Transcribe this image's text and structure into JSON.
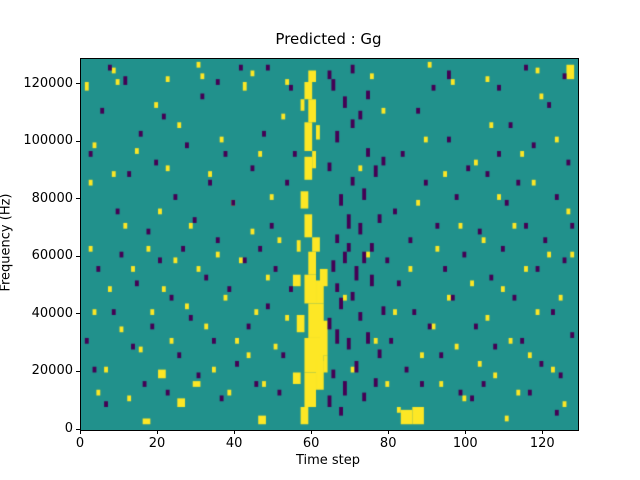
{
  "figure": {
    "background": "#ffffff"
  },
  "chart_data": {
    "type": "heatmap",
    "title": "Predicted : Gg",
    "xlabel": "Time step",
    "ylabel": "Frequency (Hz)",
    "xlim": [
      0,
      129
    ],
    "ylim": [
      0,
      129000
    ],
    "xticks": {
      "values": [
        0,
        20,
        40,
        60,
        80,
        100,
        120
      ],
      "labels": [
        "0",
        "20",
        "40",
        "60",
        "80",
        "100",
        "120"
      ]
    },
    "yticks": {
      "values": [
        0,
        20000,
        40000,
        60000,
        80000,
        100000,
        120000
      ],
      "labels": [
        "0",
        "20000",
        "40000",
        "60000",
        "80000",
        "100000",
        "120000"
      ]
    },
    "colors": {
      "background": "#21918c",
      "high": "#fde725",
      "low": "#440154"
    },
    "cell_size": {
      "x": 1,
      "y": 1000
    },
    "yellow_cells": [
      [
        2,
        62,
        1,
        2
      ],
      [
        2,
        85,
        1,
        2
      ],
      [
        3,
        40,
        1,
        2
      ],
      [
        1,
        118,
        1,
        3
      ],
      [
        4,
        12,
        1,
        2
      ],
      [
        3,
        98,
        1,
        2
      ],
      [
        6,
        20,
        1,
        2
      ],
      [
        7,
        48,
        1,
        2
      ],
      [
        8,
        88,
        1,
        2
      ],
      [
        9,
        120,
        1,
        2
      ],
      [
        10,
        34,
        1,
        2
      ],
      [
        11,
        70,
        1,
        2
      ],
      [
        12,
        10,
        1,
        2
      ],
      [
        13,
        55,
        1,
        2
      ],
      [
        14,
        96,
        1,
        2
      ],
      [
        15,
        27,
        1,
        2
      ],
      [
        17,
        62,
        1,
        2
      ],
      [
        18,
        40,
        1,
        2
      ],
      [
        19,
        112,
        1,
        2
      ],
      [
        20,
        18,
        2,
        3
      ],
      [
        20,
        75,
        1,
        2
      ],
      [
        21,
        48,
        1,
        2
      ],
      [
        22,
        90,
        1,
        2
      ],
      [
        23,
        30,
        1,
        2
      ],
      [
        24,
        58,
        1,
        2
      ],
      [
        25,
        105,
        1,
        2
      ],
      [
        25,
        8,
        2,
        3
      ],
      [
        27,
        42,
        1,
        2
      ],
      [
        28,
        70,
        1,
        2
      ],
      [
        29,
        15,
        2,
        2
      ],
      [
        30,
        55,
        1,
        2
      ],
      [
        31,
        122,
        1,
        2
      ],
      [
        32,
        35,
        1,
        2
      ],
      [
        33,
        88,
        1,
        2
      ],
      [
        34,
        20,
        1,
        2
      ],
      [
        35,
        60,
        1,
        2
      ],
      [
        36,
        100,
        1,
        2
      ],
      [
        37,
        45,
        1,
        2
      ],
      [
        38,
        12,
        1,
        2
      ],
      [
        39,
        78,
        1,
        2
      ],
      [
        40,
        30,
        1,
        2
      ],
      [
        41,
        58,
        1,
        2
      ],
      [
        42,
        118,
        1,
        3
      ],
      [
        43,
        25,
        1,
        2
      ],
      [
        44,
        68,
        1,
        2
      ],
      [
        45,
        40,
        1,
        2
      ],
      [
        46,
        95,
        1,
        2
      ],
      [
        47,
        15,
        1,
        2
      ],
      [
        48,
        52,
        1,
        2
      ],
      [
        49,
        80,
        1,
        2
      ],
      [
        50,
        28,
        1,
        2
      ],
      [
        51,
        65,
        1,
        2
      ],
      [
        52,
        108,
        1,
        2
      ],
      [
        53,
        38,
        1,
        2
      ],
      [
        68,
        45,
        1,
        2
      ],
      [
        70,
        20,
        1,
        2
      ],
      [
        72,
        90,
        1,
        2
      ],
      [
        74,
        60,
        1,
        2
      ],
      [
        76,
        30,
        1,
        2
      ],
      [
        78,
        110,
        1,
        2
      ],
      [
        79,
        15,
        1,
        2
      ],
      [
        81,
        40,
        1,
        2
      ],
      [
        82,
        6,
        1,
        2
      ],
      [
        85,
        55,
        1,
        2
      ],
      [
        87,
        78,
        1,
        2
      ],
      [
        88,
        25,
        1,
        2
      ],
      [
        89,
        100,
        1,
        2
      ],
      [
        91,
        35,
        1,
        2
      ],
      [
        92,
        62,
        1,
        2
      ],
      [
        93,
        15,
        1,
        2
      ],
      [
        94,
        88,
        1,
        2
      ],
      [
        95,
        45,
        1,
        2
      ],
      [
        96,
        120,
        1,
        2
      ],
      [
        97,
        28,
        1,
        2
      ],
      [
        98,
        70,
        1,
        2
      ],
      [
        99,
        10,
        1,
        2
      ],
      [
        101,
        50,
        1,
        2
      ],
      [
        102,
        92,
        1,
        2
      ],
      [
        103,
        22,
        1,
        2
      ],
      [
        104,
        65,
        1,
        2
      ],
      [
        105,
        38,
        1,
        2
      ],
      [
        106,
        105,
        1,
        2
      ],
      [
        107,
        18,
        1,
        2
      ],
      [
        108,
        80,
        1,
        2
      ],
      [
        109,
        48,
        1,
        2
      ],
      [
        111,
        30,
        1,
        2
      ],
      [
        112,
        70,
        1,
        2
      ],
      [
        113,
        12,
        1,
        2
      ],
      [
        114,
        95,
        1,
        2
      ],
      [
        115,
        55,
        1,
        2
      ],
      [
        116,
        25,
        1,
        2
      ],
      [
        117,
        85,
        1,
        2
      ],
      [
        118,
        40,
        1,
        2
      ],
      [
        119,
        115,
        1,
        2
      ],
      [
        121,
        60,
        1,
        2
      ],
      [
        122,
        20,
        1,
        2
      ],
      [
        123,
        100,
        1,
        2
      ],
      [
        124,
        45,
        1,
        2
      ],
      [
        125,
        8,
        1,
        2
      ],
      [
        126,
        75,
        1,
        2
      ],
      [
        8,
        124,
        1,
        2
      ],
      [
        22,
        121,
        1,
        2
      ],
      [
        30,
        126,
        1,
        2
      ],
      [
        44,
        123,
        1,
        2
      ],
      [
        53,
        120,
        1,
        2
      ],
      [
        75,
        122,
        1,
        2
      ],
      [
        90,
        126,
        1,
        2
      ],
      [
        105,
        121,
        1,
        2
      ],
      [
        118,
        124,
        1,
        2
      ],
      [
        126,
        122,
        2,
        5
      ],
      [
        127,
        60,
        1,
        2
      ],
      [
        83,
        2,
        3,
        5
      ],
      [
        86,
        2,
        3,
        6
      ],
      [
        46,
        2,
        2,
        3
      ],
      [
        16,
        2,
        2,
        2
      ],
      [
        110,
        3,
        1,
        2
      ],
      [
        57,
        2,
        2,
        6
      ],
      [
        58,
        8,
        3,
        12
      ],
      [
        58,
        20,
        5,
        12
      ],
      [
        59,
        32,
        4,
        12
      ],
      [
        58,
        44,
        3,
        10
      ],
      [
        59,
        54,
        2,
        8
      ],
      [
        60,
        62,
        2,
        5
      ],
      [
        58,
        67,
        2,
        8
      ],
      [
        57,
        77,
        2,
        6
      ],
      [
        58,
        87,
        2,
        8
      ],
      [
        58,
        97,
        2,
        10
      ],
      [
        59,
        107,
        2,
        8
      ],
      [
        58,
        115,
        2,
        6
      ],
      [
        55,
        16,
        2,
        4
      ],
      [
        56,
        34,
        2,
        6
      ],
      [
        61,
        14,
        2,
        10
      ],
      [
        62,
        26,
        2,
        12
      ],
      [
        61,
        44,
        2,
        8
      ],
      [
        63,
        20,
        1,
        6
      ],
      [
        55,
        50,
        2,
        4
      ],
      [
        56,
        62,
        1,
        4
      ],
      [
        57,
        111,
        1,
        4
      ],
      [
        60,
        91,
        1,
        6
      ],
      [
        61,
        101,
        1,
        5
      ],
      [
        59,
        121,
        2,
        4
      ],
      [
        62,
        50,
        2,
        6
      ]
    ],
    "purple_cells": [
      [
        1,
        30,
        1,
        2
      ],
      [
        2,
        95,
        1,
        2
      ],
      [
        4,
        55,
        1,
        2
      ],
      [
        5,
        110,
        1,
        2
      ],
      [
        6,
        8,
        1,
        2
      ],
      [
        8,
        40,
        1,
        2
      ],
      [
        9,
        75,
        1,
        2
      ],
      [
        10,
        60,
        1,
        2
      ],
      [
        3,
        20,
        1,
        2
      ],
      [
        7,
        125,
        1,
        2
      ],
      [
        12,
        88,
        1,
        2
      ],
      [
        13,
        28,
        1,
        2
      ],
      [
        14,
        50,
        1,
        2
      ],
      [
        15,
        102,
        1,
        2
      ],
      [
        16,
        15,
        1,
        2
      ],
      [
        17,
        68,
        1,
        2
      ],
      [
        18,
        35,
        1,
        2
      ],
      [
        19,
        92,
        1,
        2
      ],
      [
        20,
        58,
        1,
        2
      ],
      [
        11,
        120,
        1,
        3
      ],
      [
        22,
        12,
        1,
        2
      ],
      [
        23,
        45,
        1,
        2
      ],
      [
        24,
        80,
        1,
        2
      ],
      [
        25,
        25,
        1,
        2
      ],
      [
        26,
        62,
        1,
        2
      ],
      [
        27,
        98,
        1,
        2
      ],
      [
        28,
        38,
        1,
        2
      ],
      [
        29,
        72,
        1,
        2
      ],
      [
        30,
        18,
        1,
        2
      ],
      [
        21,
        108,
        1,
        2
      ],
      [
        32,
        52,
        1,
        2
      ],
      [
        33,
        85,
        1,
        2
      ],
      [
        34,
        30,
        1,
        2
      ],
      [
        35,
        65,
        1,
        2
      ],
      [
        36,
        10,
        1,
        2
      ],
      [
        37,
        95,
        1,
        2
      ],
      [
        38,
        48,
        1,
        2
      ],
      [
        39,
        78,
        1,
        2
      ],
      [
        40,
        22,
        1,
        2
      ],
      [
        31,
        115,
        1,
        2
      ],
      [
        42,
        58,
        1,
        2
      ],
      [
        43,
        35,
        1,
        2
      ],
      [
        44,
        90,
        1,
        2
      ],
      [
        45,
        15,
        1,
        2
      ],
      [
        46,
        62,
        1,
        2
      ],
      [
        47,
        102,
        1,
        2
      ],
      [
        48,
        42,
        1,
        2
      ],
      [
        49,
        70,
        1,
        2
      ],
      [
        50,
        55,
        1,
        2
      ],
      [
        41,
        125,
        1,
        2
      ],
      [
        52,
        25,
        1,
        2
      ],
      [
        53,
        85,
        1,
        2
      ],
      [
        54,
        48,
        1,
        2
      ],
      [
        55,
        95,
        1,
        2
      ],
      [
        51,
        12,
        1,
        2
      ],
      [
        54,
        118,
        1,
        2
      ],
      [
        64,
        8,
        1,
        4
      ],
      [
        65,
        18,
        1,
        3
      ],
      [
        66,
        30,
        1,
        5
      ],
      [
        67,
        42,
        1,
        4
      ],
      [
        65,
        55,
        1,
        4
      ],
      [
        66,
        65,
        1,
        3
      ],
      [
        67,
        78,
        1,
        4
      ],
      [
        64,
        90,
        1,
        3
      ],
      [
        68,
        12,
        1,
        5
      ],
      [
        69,
        28,
        1,
        4
      ],
      [
        70,
        45,
        1,
        3
      ],
      [
        68,
        58,
        1,
        4
      ],
      [
        69,
        70,
        1,
        5
      ],
      [
        70,
        85,
        1,
        3
      ],
      [
        71,
        20,
        1,
        4
      ],
      [
        72,
        38,
        1,
        3
      ],
      [
        71,
        52,
        1,
        5
      ],
      [
        72,
        68,
        1,
        4
      ],
      [
        73,
        10,
        1,
        3
      ],
      [
        74,
        30,
        1,
        4
      ],
      [
        73,
        80,
        1,
        4
      ],
      [
        74,
        95,
        1,
        3
      ],
      [
        75,
        50,
        1,
        4
      ],
      [
        76,
        15,
        1,
        3
      ],
      [
        75,
        62,
        1,
        3
      ],
      [
        76,
        88,
        1,
        4
      ],
      [
        77,
        25,
        1,
        3
      ],
      [
        78,
        40,
        1,
        3
      ],
      [
        66,
        100,
        1,
        4
      ],
      [
        70,
        105,
        1,
        3
      ],
      [
        68,
        112,
        1,
        4
      ],
      [
        72,
        108,
        1,
        3
      ],
      [
        65,
        118,
        1,
        4
      ],
      [
        74,
        115,
        1,
        3
      ],
      [
        64,
        122,
        1,
        3
      ],
      [
        70,
        124,
        1,
        3
      ],
      [
        67,
        5,
        1,
        3
      ],
      [
        73,
        58,
        1,
        4
      ],
      [
        77,
        72,
        1,
        3
      ],
      [
        78,
        92,
        1,
        3
      ],
      [
        64,
        35,
        1,
        4
      ],
      [
        66,
        48,
        1,
        3
      ],
      [
        69,
        62,
        1,
        3
      ],
      [
        80,
        30,
        1,
        2
      ],
      [
        81,
        75,
        1,
        2
      ],
      [
        82,
        50,
        1,
        2
      ],
      [
        83,
        95,
        1,
        2
      ],
      [
        84,
        20,
        1,
        2
      ],
      [
        85,
        65,
        1,
        2
      ],
      [
        86,
        40,
        1,
        2
      ],
      [
        87,
        110,
        1,
        2
      ],
      [
        88,
        15,
        1,
        2
      ],
      [
        89,
        85,
        1,
        2
      ],
      [
        79,
        58,
        1,
        2
      ],
      [
        90,
        35,
        1,
        2
      ],
      [
        92,
        70,
        1,
        2
      ],
      [
        93,
        25,
        1,
        2
      ],
      [
        94,
        55,
        1,
        2
      ],
      [
        95,
        100,
        1,
        2
      ],
      [
        96,
        45,
        1,
        2
      ],
      [
        97,
        80,
        1,
        2
      ],
      [
        98,
        12,
        1,
        2
      ],
      [
        99,
        60,
        1,
        2
      ],
      [
        91,
        118,
        1,
        2
      ],
      [
        100,
        90,
        1,
        2
      ],
      [
        102,
        35,
        1,
        2
      ],
      [
        103,
        68,
        1,
        2
      ],
      [
        104,
        15,
        1,
        2
      ],
      [
        105,
        88,
        1,
        2
      ],
      [
        106,
        52,
        1,
        2
      ],
      [
        107,
        28,
        1,
        2
      ],
      [
        108,
        95,
        1,
        2
      ],
      [
        109,
        62,
        1,
        2
      ],
      [
        101,
        10,
        1,
        2
      ],
      [
        110,
        78,
        1,
        2
      ],
      [
        112,
        45,
        1,
        2
      ],
      [
        113,
        85,
        1,
        2
      ],
      [
        114,
        30,
        1,
        2
      ],
      [
        115,
        70,
        1,
        2
      ],
      [
        116,
        12,
        1,
        2
      ],
      [
        117,
        98,
        1,
        2
      ],
      [
        118,
        55,
        1,
        2
      ],
      [
        119,
        22,
        1,
        2
      ],
      [
        111,
        105,
        1,
        2
      ],
      [
        120,
        65,
        1,
        2
      ],
      [
        122,
        40,
        1,
        2
      ],
      [
        123,
        80,
        1,
        2
      ],
      [
        124,
        18,
        1,
        2
      ],
      [
        125,
        58,
        1,
        2
      ],
      [
        126,
        92,
        1,
        2
      ],
      [
        127,
        32,
        1,
        2
      ],
      [
        121,
        112,
        1,
        2
      ],
      [
        125,
        122,
        1,
        2
      ],
      [
        123,
        5,
        1,
        2
      ],
      [
        127,
        70,
        1,
        2
      ],
      [
        35,
        120,
        1,
        2
      ],
      [
        48,
        125,
        1,
        2
      ],
      [
        95,
        122,
        1,
        3
      ],
      [
        108,
        118,
        1,
        2
      ],
      [
        115,
        125,
        1,
        2
      ]
    ]
  }
}
